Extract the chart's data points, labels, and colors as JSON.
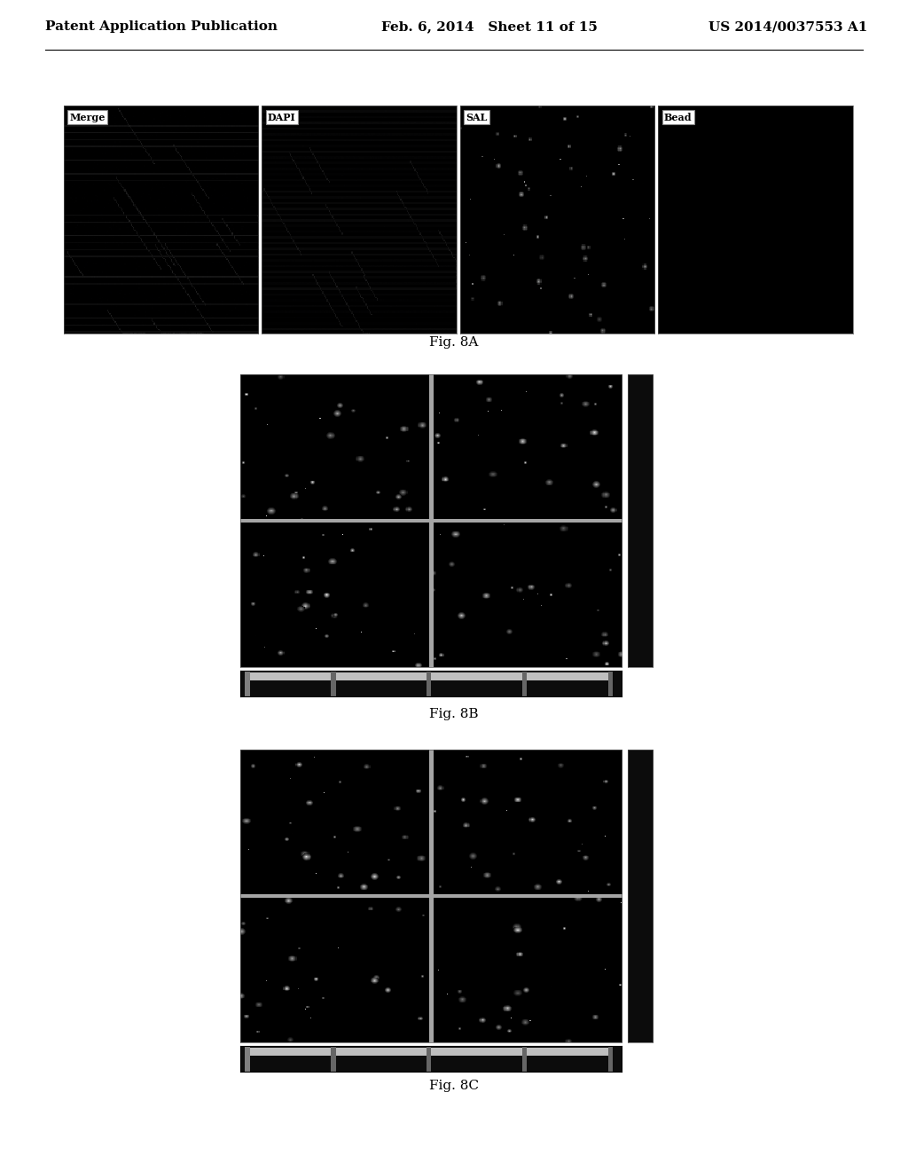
{
  "header_left": "Patent Application Publication",
  "header_center": "Feb. 6, 2014   Sheet 11 of 15",
  "header_right": "US 2014/0037553 A1",
  "fig8a_labels": [
    "Merge",
    "DAPI",
    "SAL",
    "Bead"
  ],
  "fig8a_caption": "Fig. 8A",
  "fig8b_caption": "Fig. 8B",
  "fig8c_caption": "Fig. 8C",
  "bg_color": "#ffffff",
  "header_line_color": "#000000",
  "header_fontsize": 11,
  "caption_fontsize": 11,
  "label_fontsize": 8
}
